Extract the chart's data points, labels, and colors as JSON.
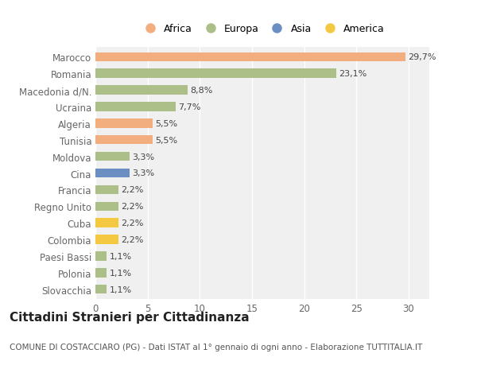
{
  "countries": [
    "Slovacchia",
    "Polonia",
    "Paesi Bassi",
    "Colombia",
    "Cuba",
    "Regno Unito",
    "Francia",
    "Cina",
    "Moldova",
    "Tunisia",
    "Algeria",
    "Ucraina",
    "Macedonia d/N.",
    "Romania",
    "Marocco"
  ],
  "values": [
    1.1,
    1.1,
    1.1,
    2.2,
    2.2,
    2.2,
    2.2,
    3.3,
    3.3,
    5.5,
    5.5,
    7.7,
    8.8,
    23.1,
    29.7
  ],
  "labels": [
    "1,1%",
    "1,1%",
    "1,1%",
    "2,2%",
    "2,2%",
    "2,2%",
    "2,2%",
    "3,3%",
    "3,3%",
    "5,5%",
    "5,5%",
    "7,7%",
    "8,8%",
    "23,1%",
    "29,7%"
  ],
  "continents": [
    "Europa",
    "Europa",
    "Europa",
    "America",
    "America",
    "Europa",
    "Europa",
    "Asia",
    "Europa",
    "Africa",
    "Africa",
    "Europa",
    "Europa",
    "Europa",
    "Africa"
  ],
  "colors": {
    "Africa": "#F2AE7E",
    "Europa": "#ADBF88",
    "Asia": "#6B8FC2",
    "America": "#F5C842"
  },
  "legend_order": [
    "Africa",
    "Europa",
    "Asia",
    "America"
  ],
  "title": "Cittadini Stranieri per Cittadinanza",
  "subtitle": "COMUNE DI COSTACCIARO (PG) - Dati ISTAT al 1° gennaio di ogni anno - Elaborazione TUTTITALIA.IT",
  "xlim": [
    0,
    32
  ],
  "xticks": [
    0,
    5,
    10,
    15,
    20,
    25,
    30
  ],
  "background_color": "#ffffff",
  "plot_background": "#f0f0f0",
  "grid_color": "#ffffff",
  "bar_height": 0.55,
  "title_fontsize": 11,
  "subtitle_fontsize": 7.5,
  "label_fontsize": 8,
  "tick_fontsize": 8.5,
  "axis_label_color": "#666666"
}
